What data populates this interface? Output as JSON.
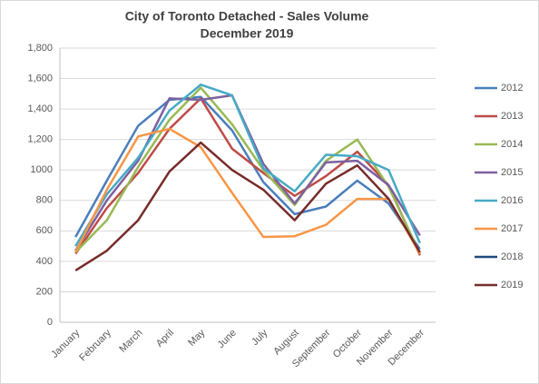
{
  "chart_data": {
    "type": "line",
    "title": "City of Toronto Detached - Sales Volume",
    "subtitle": "December 2019",
    "categories": [
      "January",
      "February",
      "March",
      "April",
      "May",
      "June",
      "July",
      "August",
      "September",
      "October",
      "November",
      "December"
    ],
    "series": [
      {
        "name": "2012",
        "color": "#4a7ebb",
        "values": [
          560,
          930,
          1290,
          1460,
          1480,
          1260,
          920,
          710,
          760,
          930,
          780,
          480
        ]
      },
      {
        "name": "2013",
        "color": "#be4b48",
        "values": [
          450,
          750,
          980,
          1270,
          1470,
          1140,
          980,
          830,
          960,
          1120,
          900,
          440
        ]
      },
      {
        "name": "2014",
        "color": "#98b954",
        "values": [
          460,
          670,
          1020,
          1330,
          1540,
          1300,
          1000,
          770,
          1060,
          1200,
          890,
          450
        ]
      },
      {
        "name": "2015",
        "color": "#7d60a0",
        "values": [
          470,
          800,
          1060,
          1470,
          1460,
          1490,
          1040,
          780,
          1050,
          1060,
          900,
          570
        ]
      },
      {
        "name": "2016",
        "color": "#46aac5",
        "values": [
          500,
          840,
          1080,
          1390,
          1560,
          1490,
          1010,
          860,
          1100,
          1090,
          1000,
          520
        ]
      },
      {
        "name": "2017",
        "color": "#f79646",
        "values": [
          460,
          870,
          1220,
          1270,
          1150,
          850,
          560,
          565,
          640,
          810,
          810,
          450
        ]
      },
      {
        "name": "2018",
        "color": "#1f497d",
        "values": [
          null,
          null,
          null,
          null,
          null,
          null,
          null,
          null,
          null,
          null,
          null,
          null
        ]
      },
      {
        "name": "2019",
        "color": "#772c2a",
        "values": [
          340,
          470,
          670,
          990,
          1180,
          1000,
          870,
          670,
          910,
          1030,
          810,
          460
        ]
      }
    ],
    "ylim": [
      0,
      1800
    ],
    "yticks": [
      0,
      200,
      400,
      600,
      800,
      1000,
      {
        "value": 1200,
        "label": "1,200"
      },
      {
        "value": 1400,
        "label": "1,400"
      },
      {
        "value": 1600,
        "label": "1,600"
      },
      {
        "value": 1800,
        "label": "1,800"
      }
    ],
    "grid": true,
    "legend": "right"
  }
}
